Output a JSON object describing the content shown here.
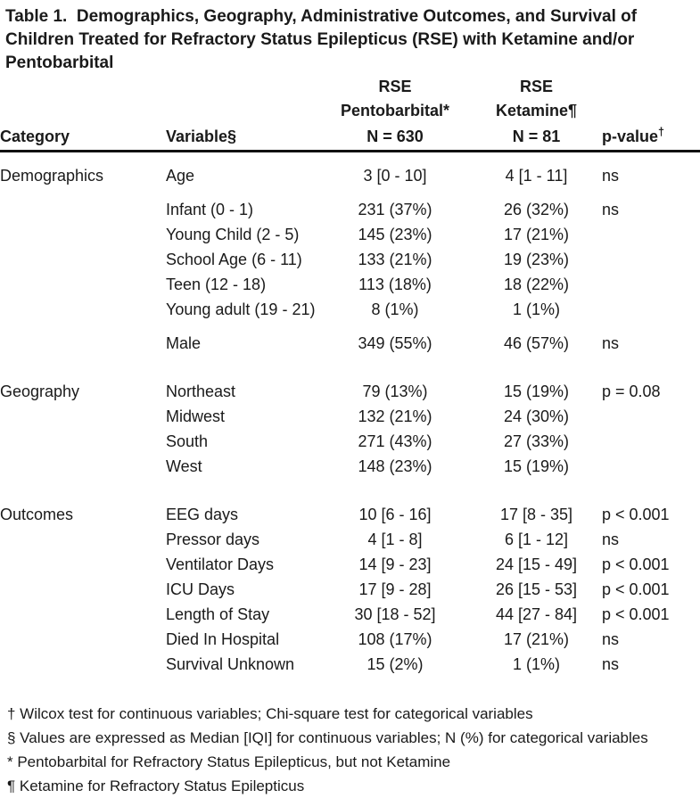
{
  "title_lines": [
    "Table 1.  Demographics, Geography, Administrative Outcomes, and Survival of",
    "Children Treated for Refractory Status Epilepticus (RSE) with Ketamine and/or",
    "Pentobarbital"
  ],
  "header": {
    "rse_label": "RSE",
    "pentobarbital_label": "Pentobarbital*",
    "ketamine_label": "Ketamine¶",
    "category": "Category",
    "variable": "Variable§",
    "pentobarbital_n": "N = 630",
    "ketamine_n": "N = 81",
    "pvalue": "p-value",
    "pvalue_dagger": "†"
  },
  "table": {
    "rows": [
      {
        "gap": "first",
        "category": "Demographics",
        "variable": "Age",
        "pentobarbital": "3 [0 - 10]",
        "ketamine": "4 [1 - 11]",
        "pvalue": "ns"
      },
      {
        "gap": "block",
        "category": "",
        "variable": "Infant (0 - 1)",
        "pentobarbital": "231 (37%)",
        "ketamine": "26 (32%)",
        "pvalue": "ns"
      },
      {
        "gap": "none",
        "category": "",
        "variable": "Young Child (2 - 5)",
        "pentobarbital": "145 (23%)",
        "ketamine": "17 (21%)",
        "pvalue": ""
      },
      {
        "gap": "none",
        "category": "",
        "variable": "School Age (6 - 11)",
        "pentobarbital": "133 (21%)",
        "ketamine": "19 (23%)",
        "pvalue": ""
      },
      {
        "gap": "none",
        "category": "",
        "variable": "Teen (12 - 18)",
        "pentobarbital": "113 (18%)",
        "ketamine": "18 (22%)",
        "pvalue": ""
      },
      {
        "gap": "none",
        "category": "",
        "variable": "Young adult (19 - 21)",
        "pentobarbital": "8 (1%)",
        "ketamine": "1 (1%)",
        "pvalue": ""
      },
      {
        "gap": "block",
        "category": "",
        "variable": "Male",
        "pentobarbital": "349 (55%)",
        "ketamine": "46 (57%)",
        "pvalue": "ns"
      },
      {
        "gap": "section",
        "category": "Geography",
        "variable": "Northeast",
        "pentobarbital": "79 (13%)",
        "ketamine": "15 (19%)",
        "pvalue": "p = 0.08"
      },
      {
        "gap": "none",
        "category": "",
        "variable": "Midwest",
        "pentobarbital": "132 (21%)",
        "ketamine": "24 (30%)",
        "pvalue": ""
      },
      {
        "gap": "none",
        "category": "",
        "variable": "South",
        "pentobarbital": "271 (43%)",
        "ketamine": "27 (33%)",
        "pvalue": ""
      },
      {
        "gap": "none",
        "category": "",
        "variable": "West",
        "pentobarbital": "148 (23%)",
        "ketamine": "15 (19%)",
        "pvalue": ""
      },
      {
        "gap": "section",
        "category": "Outcomes",
        "variable": "EEG days",
        "pentobarbital": "10 [6 - 16]",
        "ketamine": "17 [8 - 35]",
        "pvalue": "p < 0.001"
      },
      {
        "gap": "none",
        "category": "",
        "variable": "Pressor days",
        "pentobarbital": "4 [1 - 8]",
        "ketamine": "6 [1 - 12]",
        "pvalue": "ns"
      },
      {
        "gap": "none",
        "category": "",
        "variable": "Ventilator Days",
        "pentobarbital": "14 [9 - 23]",
        "ketamine": "24 [15 - 49]",
        "pvalue": "p < 0.001"
      },
      {
        "gap": "none",
        "category": "",
        "variable": "ICU Days",
        "pentobarbital": "17 [9 - 28]",
        "ketamine": "26 [15 - 53]",
        "pvalue": "p < 0.001"
      },
      {
        "gap": "none",
        "category": "",
        "variable": "Length of Stay",
        "pentobarbital": "30 [18 - 52]",
        "ketamine": "44 [27 - 84]",
        "pvalue": "p < 0.001"
      },
      {
        "gap": "none",
        "category": "",
        "variable": "Died In Hospital",
        "pentobarbital": "108 (17%)",
        "ketamine": "17 (21%)",
        "pvalue": "ns"
      },
      {
        "gap": "none",
        "category": "",
        "variable": "Survival Unknown",
        "pentobarbital": "15 (2%)",
        "ketamine": "1 (1%)",
        "pvalue": "ns"
      }
    ]
  },
  "footnotes": [
    "† Wilcox test for continuous variables; Chi-square test for categorical variables",
    "§ Values are expressed as Median [IQI] for continuous variables; N (%) for categorical variables",
    "* Pentobarbital for Refractory Status Epilepticus, but not Ketamine",
    "¶ Ketamine for Refractory Status Epilepticus"
  ],
  "colors": {
    "text": "#1a1a1a",
    "rule": "#111111",
    "background": "#ffffff"
  }
}
